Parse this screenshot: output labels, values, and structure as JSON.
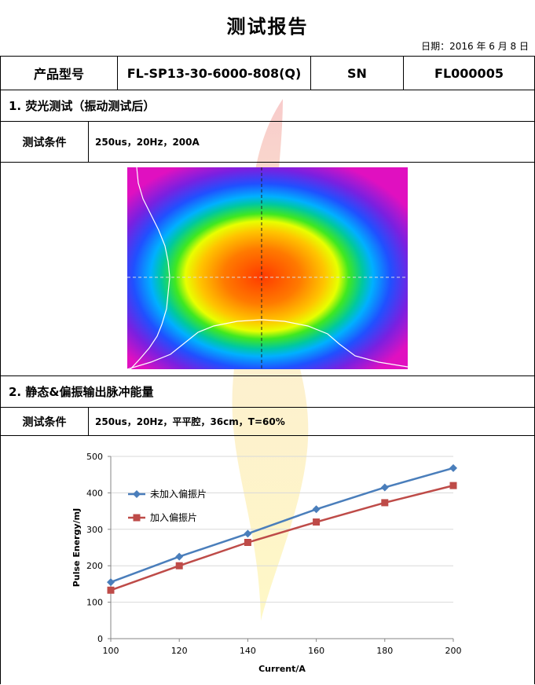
{
  "title": "测试报告",
  "date_line": "日期：2016 年 6 月 8 日",
  "header": {
    "model_label": "产品型号",
    "model_value": "FL-SP13-30-6000-808(Q)",
    "sn_label": "SN",
    "sn_value": "FL000005"
  },
  "section1": {
    "heading": "1.  荧光测试（振动测试后）",
    "cond_label": "测试条件",
    "cond_value": "250us，20Hz，200A"
  },
  "section2": {
    "heading": "2.  静态&偏振输出脉冲能量",
    "cond_label": "测试条件",
    "cond_value": "250us，20Hz，平平腔，36cm，T=60%"
  },
  "chart_data": {
    "type": "line",
    "xlabel": "Current/A",
    "ylabel": "Pulse Energy/mJ",
    "x": [
      100,
      120,
      140,
      160,
      180,
      200
    ],
    "xlim": [
      100,
      200
    ],
    "ylim": [
      0,
      500
    ],
    "xticks": [
      100,
      120,
      140,
      160,
      180,
      200
    ],
    "yticks": [
      0,
      100,
      200,
      300,
      400,
      500
    ],
    "grid": true,
    "legend": "top-left",
    "series": [
      {
        "name": "未加入偏振片",
        "values": [
          155,
          225,
          288,
          355,
          415,
          468
        ],
        "color": "#4a7ebb",
        "marker": "diamond"
      },
      {
        "name": "加入偏振片",
        "values": [
          133,
          200,
          264,
          320,
          373,
          420
        ],
        "color": "#be4b48",
        "marker": "square"
      }
    ]
  }
}
